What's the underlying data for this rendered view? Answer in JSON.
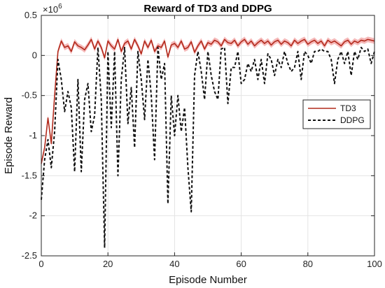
{
  "chart_data": {
    "type": "line",
    "title": "Reward of TD3 and DDPG",
    "xlabel": "Episode Number",
    "ylabel": "Episode Reward",
    "y_exponent_label": "×10",
    "y_exponent_power": "6",
    "xlim": [
      0,
      100
    ],
    "ylim": [
      -2.5,
      0.5
    ],
    "xticks": [
      0,
      20,
      40,
      60,
      80,
      100
    ],
    "yticks": [
      -2.5,
      -2,
      -1.5,
      -1,
      -0.5,
      0,
      0.5
    ],
    "ytick_labels": [
      "-2.5",
      "-2",
      "-1.5",
      "-1",
      "-0.5",
      "0",
      "0.5"
    ],
    "grid": true,
    "legend_position": "right",
    "series": [
      {
        "name": "TD3",
        "color": "#b22a1c",
        "band_color": "#f2a7a7",
        "style": "solid",
        "x": [
          0,
          1,
          2,
          3,
          4,
          5,
          6,
          7,
          8,
          9,
          10,
          11,
          12,
          13,
          14,
          15,
          16,
          17,
          18,
          19,
          20,
          21,
          22,
          23,
          24,
          25,
          26,
          27,
          28,
          29,
          30,
          31,
          32,
          33,
          34,
          35,
          36,
          37,
          38,
          39,
          40,
          41,
          42,
          43,
          44,
          45,
          46,
          47,
          48,
          49,
          50,
          51,
          52,
          53,
          54,
          55,
          56,
          57,
          58,
          59,
          60,
          61,
          62,
          63,
          64,
          65,
          66,
          67,
          68,
          69,
          70,
          71,
          72,
          73,
          74,
          75,
          76,
          77,
          78,
          79,
          80,
          81,
          82,
          83,
          84,
          85,
          86,
          87,
          88,
          89,
          90,
          91,
          92,
          93,
          94,
          95,
          96,
          97,
          98,
          99,
          100
        ],
        "y": [
          -1.35,
          -1.15,
          -0.78,
          -1.1,
          -0.5,
          0.05,
          0.18,
          0.1,
          0.12,
          0.05,
          0.17,
          0.12,
          0.1,
          0.07,
          0.13,
          0.2,
          0.08,
          0.18,
          0.1,
          -0.03,
          0.18,
          0.12,
          0.08,
          0.2,
          0.05,
          0.15,
          0.18,
          0.08,
          0.2,
          0.12,
          0.02,
          0.18,
          0.1,
          0.19,
          0.05,
          0.12,
          0.1,
          0.18,
          -0.02,
          0.13,
          0.15,
          0.1,
          0.18,
          0.08,
          0.1,
          0.17,
          0.04,
          0.12,
          0.18,
          0.08,
          0.16,
          0.14,
          0.19,
          0.17,
          0.12,
          0.2,
          0.16,
          0.15,
          0.19,
          0.12,
          0.17,
          0.2,
          0.14,
          0.18,
          0.12,
          0.16,
          0.19,
          0.15,
          0.18,
          0.13,
          0.17,
          0.19,
          0.14,
          0.18,
          0.16,
          0.12,
          0.19,
          0.15,
          0.18,
          0.2,
          0.14,
          0.17,
          0.19,
          0.15,
          0.18,
          0.12,
          0.19,
          0.16,
          0.18,
          0.15,
          0.12,
          0.17,
          0.19,
          0.14,
          0.18,
          0.16,
          0.19,
          0.18,
          0.2,
          0.19,
          0.18
        ]
      },
      {
        "name": "DDPG",
        "color": "#111111",
        "style": "dashed",
        "x": [
          0,
          1,
          2,
          3,
          4,
          5,
          6,
          7,
          8,
          9,
          10,
          11,
          12,
          13,
          14,
          15,
          16,
          17,
          18,
          19,
          20,
          21,
          22,
          23,
          24,
          25,
          26,
          27,
          28,
          29,
          30,
          31,
          32,
          33,
          34,
          35,
          36,
          37,
          38,
          39,
          40,
          41,
          42,
          43,
          44,
          45,
          46,
          47,
          48,
          49,
          50,
          51,
          52,
          53,
          54,
          55,
          56,
          57,
          58,
          59,
          60,
          61,
          62,
          63,
          64,
          65,
          66,
          67,
          68,
          69,
          70,
          71,
          72,
          73,
          74,
          75,
          76,
          77,
          78,
          79,
          80,
          81,
          82,
          83,
          84,
          85,
          86,
          87,
          88,
          89,
          90,
          91,
          92,
          93,
          94,
          95,
          96,
          97,
          98,
          99,
          100
        ],
        "y": [
          -1.8,
          -1.3,
          -1.05,
          -1.4,
          -0.95,
          -0.05,
          -0.3,
          -0.7,
          -0.45,
          -0.65,
          -1.45,
          -0.3,
          -1.45,
          -0.55,
          -0.35,
          -0.95,
          -0.75,
          0.1,
          -0.55,
          -2.4,
          0.05,
          -0.9,
          0.05,
          -1.5,
          -0.3,
          0.1,
          -0.85,
          -0.4,
          -1.15,
          0.05,
          -0.3,
          -0.8,
          -0.05,
          -0.5,
          -1.3,
          0.1,
          -0.3,
          -0.1,
          -1.85,
          -0.5,
          -1.0,
          -0.5,
          -0.95,
          -0.65,
          -1.4,
          -1.95,
          -0.25,
          0.05,
          -0.2,
          -0.55,
          0.05,
          -0.25,
          -0.45,
          -0.55,
          0.08,
          0.1,
          -0.6,
          -0.15,
          -0.15,
          0.05,
          -0.35,
          -0.3,
          -0.1,
          -0.2,
          -0.05,
          -0.3,
          -0.05,
          -0.35,
          0.02,
          -0.05,
          -0.25,
          -0.05,
          -0.15,
          0.05,
          -0.1,
          -0.2,
          -0.15,
          0.05,
          -0.3,
          0.05,
          0.0,
          -0.1,
          0.05,
          0.05,
          0.08,
          0.05,
          0.05,
          -0.05,
          -0.35,
          -0.05,
          0.05,
          -0.1,
          0.05,
          -0.25,
          0.05,
          -0.05,
          0.1,
          0.05,
          0.08,
          -0.1,
          0.05
        ]
      }
    ]
  }
}
